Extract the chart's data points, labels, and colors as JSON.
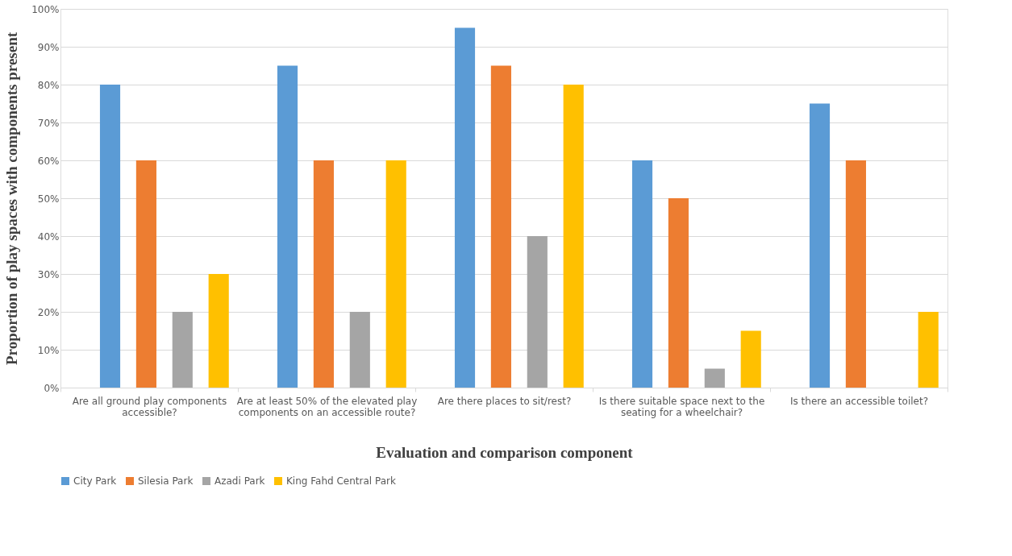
{
  "chart_data": {
    "type": "bar",
    "xlabel": "Evaluation and comparison component",
    "ylabel": "Proportion of play spaces with components present",
    "categories": [
      "Are all ground play components accessible?",
      "Are at least 50% of the elevated play components on an accessible route?",
      "Are there places to sit/rest?",
      "Is there suitable space next to the seating for a wheelchair?",
      "Is there an accessible toilet?"
    ],
    "series": [
      {
        "name": "City Park",
        "color": "#5b9bd5",
        "values": [
          80,
          85,
          95,
          60,
          75
        ]
      },
      {
        "name": "Silesia Park",
        "color": "#ed7d31",
        "values": [
          60,
          60,
          85,
          50,
          60
        ]
      },
      {
        "name": "Azadi Park",
        "color": "#a5a5a5",
        "values": [
          20,
          20,
          40,
          5,
          0
        ]
      },
      {
        "name": "King Fahd Central Park",
        "color": "#ffc000",
        "values": [
          30,
          60,
          80,
          15,
          20
        ]
      }
    ],
    "ylim": [
      0,
      100
    ],
    "yticks": [
      {
        "value": 0,
        "label": "0%"
      },
      {
        "value": 10,
        "label": "10%"
      },
      {
        "value": 20,
        "label": "20%"
      },
      {
        "value": 30,
        "label": "30%"
      },
      {
        "value": 40,
        "label": "40%"
      },
      {
        "value": 50,
        "label": "50%"
      },
      {
        "value": 60,
        "label": "60%"
      },
      {
        "value": 70,
        "label": "70%"
      },
      {
        "value": 80,
        "label": "80%"
      },
      {
        "value": 90,
        "label": "90%"
      },
      {
        "value": 100,
        "label": "100%"
      }
    ],
    "grid": "y",
    "legend": "bottom"
  }
}
